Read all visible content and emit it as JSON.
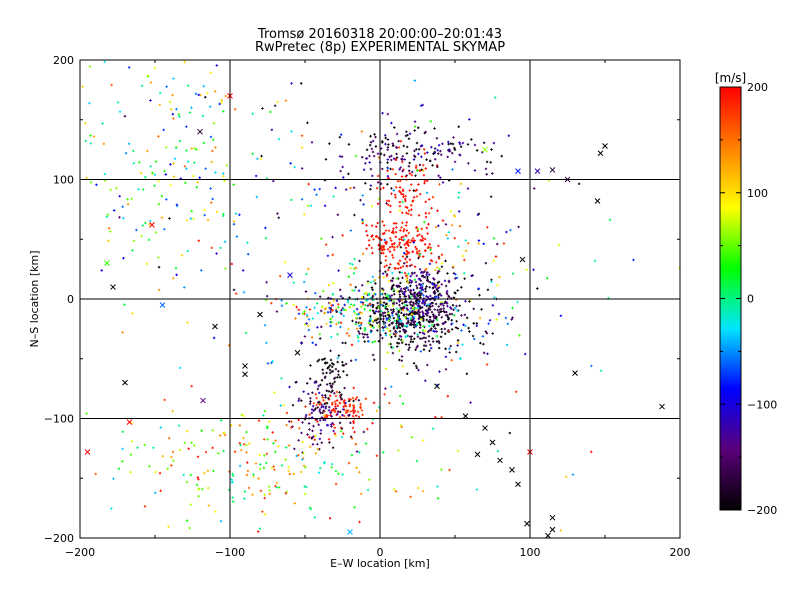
{
  "chart_data": {
    "type": "scatter",
    "title_line1": "Tromsø 20160318 20:00:00–20:01:43",
    "title_line2": "RwPretec (8p) EXPERIMENTAL SKYMAP",
    "xlabel": "E–W location [km]",
    "ylabel": "N–S location [km]",
    "xlim": [
      -200,
      200
    ],
    "ylim": [
      -200,
      200
    ],
    "xticks": [
      "−200",
      "−100",
      "0",
      "100",
      "200"
    ],
    "yticks": [
      "−200",
      "−100",
      "0",
      "100",
      "200"
    ],
    "grid": true,
    "colorbar": {
      "label": "[m/s]",
      "range": [
        -200,
        200
      ],
      "ticks": [
        "200",
        "100",
        "0",
        "−100",
        "−200"
      ],
      "colormap": [
        "#000000",
        "#5a007a",
        "#0000ff",
        "#00e6ff",
        "#00ff00",
        "#ffff00",
        "#ff8000",
        "#ff0000"
      ]
    },
    "clusters": [
      {
        "cx": 20,
        "cy": -10,
        "sx": 18,
        "sy": 18,
        "n": 520,
        "v": -190,
        "dv": 40
      },
      {
        "cx": 5,
        "cy": -10,
        "sx": 18,
        "sy": 15,
        "n": 160,
        "v": 20,
        "dv": 80
      },
      {
        "cx": 30,
        "cy": 5,
        "sx": 10,
        "sy": 12,
        "n": 120,
        "v": -130,
        "dv": 20
      },
      {
        "cx": 15,
        "cy": 45,
        "sx": 14,
        "sy": 12,
        "n": 180,
        "v": 190,
        "dv": 15
      },
      {
        "cx": 15,
        "cy": 95,
        "sx": 10,
        "sy": 15,
        "n": 80,
        "v": 190,
        "dv": 15
      },
      {
        "cx": 25,
        "cy": 120,
        "sx": 28,
        "sy": 14,
        "n": 180,
        "v": -160,
        "dv": 60
      },
      {
        "cx": -25,
        "cy": -92,
        "sx": 10,
        "sy": 8,
        "n": 100,
        "v": 185,
        "dv": 20
      },
      {
        "cx": -40,
        "cy": -95,
        "sx": 10,
        "sy": 15,
        "n": 100,
        "v": -150,
        "dv": 40
      },
      {
        "cx": -30,
        "cy": -65,
        "sx": 8,
        "sy": 15,
        "n": 70,
        "v": -190,
        "dv": 20
      },
      {
        "cx": -35,
        "cy": -10,
        "sx": 20,
        "sy": 15,
        "n": 120,
        "v": 0,
        "dv": 200
      },
      {
        "cx": -75,
        "cy": -135,
        "sx": 55,
        "sy": 25,
        "n": 240,
        "v": 80,
        "dv": 120
      },
      {
        "cx": -150,
        "cy": 120,
        "sx": 30,
        "sy": 50,
        "n": 170,
        "v": 30,
        "dv": 140
      },
      {
        "cx": -60,
        "cy": 95,
        "sx": 60,
        "sy": 60,
        "n": 120,
        "v": 0,
        "dv": 200
      },
      {
        "cx": 60,
        "cy": 40,
        "sx": 25,
        "sy": 25,
        "n": 60,
        "v": 0,
        "dv": 200
      },
      {
        "cx": 50,
        "cy": -30,
        "sx": 25,
        "sy": 20,
        "n": 60,
        "v": -120,
        "dv": 100
      },
      {
        "cx": 0,
        "cy": 0,
        "sx": 90,
        "sy": 80,
        "n": 110,
        "v": 0,
        "dv": 200
      }
    ],
    "cross_points": [
      {
        "x": 150,
        "y": 128,
        "v": -200
      },
      {
        "x": 147,
        "y": 122,
        "v": -200
      },
      {
        "x": 145,
        "y": 82,
        "v": -200
      },
      {
        "x": 125,
        "y": 100,
        "v": -160
      },
      {
        "x": 105,
        "y": 107,
        "v": -120
      },
      {
        "x": 92,
        "y": 107,
        "v": -80
      },
      {
        "x": 188,
        "y": -90,
        "v": -200
      },
      {
        "x": 130,
        "y": -62,
        "v": -200
      },
      {
        "x": 70,
        "y": -108,
        "v": -200
      },
      {
        "x": 75,
        "y": -120,
        "v": -200
      },
      {
        "x": 80,
        "y": -135,
        "v": -200
      },
      {
        "x": 88,
        "y": -143,
        "v": -200
      },
      {
        "x": 92,
        "y": -155,
        "v": -200
      },
      {
        "x": 98,
        "y": -188,
        "v": -200
      },
      {
        "x": 115,
        "y": -183,
        "v": -200
      },
      {
        "x": 115,
        "y": -193,
        "v": -200
      },
      {
        "x": 112,
        "y": -198,
        "v": -200
      },
      {
        "x": 100,
        "y": -128,
        "v": 200
      },
      {
        "x": -170,
        "y": -70,
        "v": -200
      },
      {
        "x": -110,
        "y": -23,
        "v": -200
      },
      {
        "x": -90,
        "y": -63,
        "v": -200
      },
      {
        "x": -80,
        "y": -13,
        "v": -200
      },
      {
        "x": -195,
        "y": -128,
        "v": 200
      },
      {
        "x": -167,
        "y": -103,
        "v": 200
      },
      {
        "x": -152,
        "y": 62,
        "v": 200
      },
      {
        "x": -178,
        "y": 10,
        "v": -200
      },
      {
        "x": -182,
        "y": 30,
        "v": 40
      },
      {
        "x": -145,
        "y": -5,
        "v": -60
      },
      {
        "x": -118,
        "y": -85,
        "v": -140
      },
      {
        "x": -100,
        "y": 170,
        "v": 200
      },
      {
        "x": -120,
        "y": 140,
        "v": -180
      },
      {
        "x": -90,
        "y": -56,
        "v": -200
      },
      {
        "x": -20,
        "y": -195,
        "v": -40
      },
      {
        "x": 65,
        "y": -130,
        "v": -200
      },
      {
        "x": 57,
        "y": -98,
        "v": -200
      },
      {
        "x": 38,
        "y": -73,
        "v": -200
      },
      {
        "x": 95,
        "y": 33,
        "v": -200
      },
      {
        "x": 70,
        "y": 125,
        "v": 60
      },
      {
        "x": 115,
        "y": 108,
        "v": -180
      },
      {
        "x": -60,
        "y": 20,
        "v": -100
      },
      {
        "x": -55,
        "y": -45,
        "v": -200
      }
    ]
  }
}
